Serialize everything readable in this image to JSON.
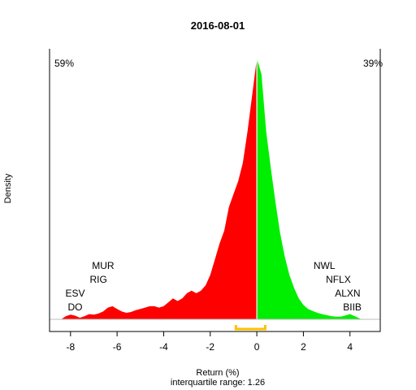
{
  "chart_data": {
    "type": "area",
    "title": "2016-08-01",
    "xlabel": "Return (%)",
    "subtitle": "interquartile range: 1.26",
    "ylabel": "Density",
    "xlim": [
      -8.9,
      5.3
    ],
    "ylim": [
      0,
      1.0
    ],
    "x_ticks": [
      "-8",
      "-6",
      "-4",
      "-2",
      "0",
      "2",
      "4"
    ],
    "x_tick_values": [
      -8,
      -6,
      -4,
      -2,
      0,
      2,
      4
    ],
    "split_at": 0,
    "negative_share": "59%",
    "positive_share": "39%",
    "colors": {
      "negative": "#ff0000",
      "positive": "#00ee00",
      "negative_label": "#ff0000",
      "positive_label": "#008000",
      "iqr_bracket": "#ffc000",
      "zero_line": "#ffffff",
      "axis": "#000000",
      "baseline": "#bebebe"
    },
    "iqr": [
      -0.9,
      0.36
    ],
    "density_curve": [
      [
        -8.4,
        0.0
      ],
      [
        -8.2,
        0.012
      ],
      [
        -8.0,
        0.018
      ],
      [
        -7.8,
        0.014
      ],
      [
        -7.6,
        0.006
      ],
      [
        -7.4,
        0.012
      ],
      [
        -7.2,
        0.02
      ],
      [
        -7.0,
        0.018
      ],
      [
        -6.8,
        0.022
      ],
      [
        -6.6,
        0.03
      ],
      [
        -6.4,
        0.045
      ],
      [
        -6.2,
        0.05
      ],
      [
        -6.0,
        0.04
      ],
      [
        -5.8,
        0.03
      ],
      [
        -5.6,
        0.025
      ],
      [
        -5.4,
        0.028
      ],
      [
        -5.2,
        0.035
      ],
      [
        -5.0,
        0.04
      ],
      [
        -4.8,
        0.045
      ],
      [
        -4.6,
        0.05
      ],
      [
        -4.4,
        0.05
      ],
      [
        -4.2,
        0.045
      ],
      [
        -4.0,
        0.05
      ],
      [
        -3.8,
        0.065
      ],
      [
        -3.6,
        0.08
      ],
      [
        -3.4,
        0.07
      ],
      [
        -3.2,
        0.08
      ],
      [
        -3.0,
        0.1
      ],
      [
        -2.8,
        0.11
      ],
      [
        -2.6,
        0.1
      ],
      [
        -2.4,
        0.11
      ],
      [
        -2.2,
        0.13
      ],
      [
        -2.0,
        0.17
      ],
      [
        -1.8,
        0.23
      ],
      [
        -1.6,
        0.29
      ],
      [
        -1.4,
        0.34
      ],
      [
        -1.2,
        0.43
      ],
      [
        -1.0,
        0.48
      ],
      [
        -0.8,
        0.53
      ],
      [
        -0.6,
        0.6
      ],
      [
        -0.4,
        0.72
      ],
      [
        -0.2,
        0.86
      ],
      [
        0.0,
        1.0
      ],
      [
        0.2,
        0.94
      ],
      [
        0.4,
        0.72
      ],
      [
        0.6,
        0.58
      ],
      [
        0.8,
        0.45
      ],
      [
        1.0,
        0.33
      ],
      [
        1.2,
        0.24
      ],
      [
        1.4,
        0.17
      ],
      [
        1.6,
        0.12
      ],
      [
        1.8,
        0.08
      ],
      [
        2.0,
        0.055
      ],
      [
        2.2,
        0.04
      ],
      [
        2.4,
        0.032
      ],
      [
        2.6,
        0.025
      ],
      [
        2.8,
        0.02
      ],
      [
        3.0,
        0.016
      ],
      [
        3.2,
        0.012
      ],
      [
        3.4,
        0.01
      ],
      [
        3.6,
        0.01
      ],
      [
        3.8,
        0.015
      ],
      [
        4.0,
        0.02
      ],
      [
        4.2,
        0.012
      ],
      [
        4.4,
        0.004
      ],
      [
        4.5,
        0.0
      ]
    ],
    "annotations_left": [
      {
        "text": "MUR",
        "x": -6.6,
        "row": 4
      },
      {
        "text": "RIG",
        "x": -6.8,
        "row": 3
      },
      {
        "text": "ESV",
        "x": -7.8,
        "row": 2
      },
      {
        "text": "DO",
        "x": -7.8,
        "row": 1
      }
    ],
    "annotations_right": [
      {
        "text": "NWL",
        "x": 2.9,
        "row": 4
      },
      {
        "text": "NFLX",
        "x": 3.5,
        "row": 3
      },
      {
        "text": "ALXN",
        "x": 3.9,
        "row": 2
      },
      {
        "text": "BIIB",
        "x": 4.1,
        "row": 1
      }
    ]
  }
}
